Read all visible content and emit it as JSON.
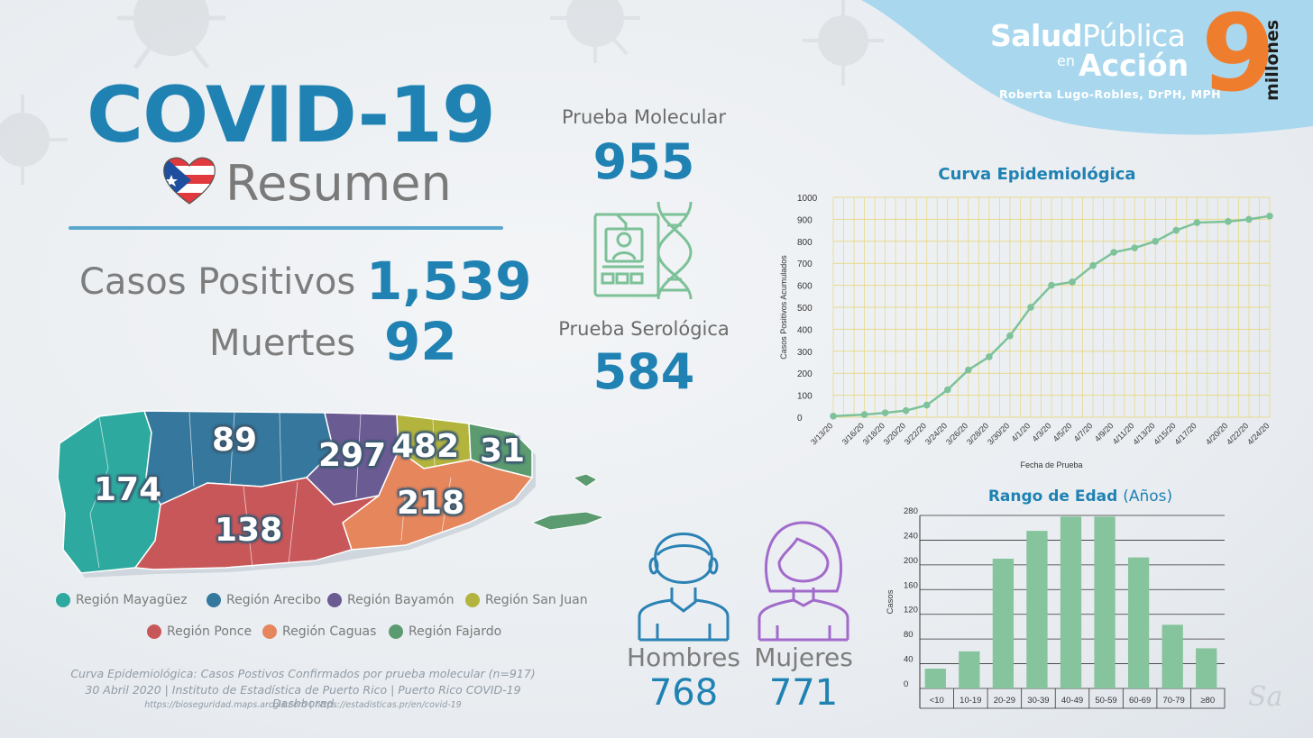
{
  "brand": {
    "salud": "Salud",
    "publica": "Pública",
    "en": "en",
    "accion": "Acción",
    "author": "Roberta Lugo-Robles, DrPH, MPH",
    "nine": "9",
    "millones": "millones"
  },
  "title": {
    "main": "COVID-19",
    "sub": "Resumen"
  },
  "stats": {
    "casos_label": "Casos Positivos",
    "casos_value": "1,539",
    "muertes_label": "Muertes",
    "muertes_value": "92"
  },
  "tests": {
    "molecular_label": "Prueba Molecular",
    "molecular_value": "955",
    "serologica_label": "Prueba Serológica",
    "serologica_value": "584"
  },
  "map": {
    "regions": [
      {
        "name": "Región Mayagüez",
        "value": "174",
        "color": "#2ea99f"
      },
      {
        "name": "Región Arecibo",
        "value": "89",
        "color": "#35779d"
      },
      {
        "name": "Región Bayamón",
        "value": "297",
        "color": "#6b5b93"
      },
      {
        "name": "Región San Juan",
        "value": "482",
        "color": "#b3b43e"
      },
      {
        "name": "Región Ponce",
        "value": "138",
        "color": "#c8575a"
      },
      {
        "name": "Región Caguas",
        "value": "218",
        "color": "#e5865d"
      },
      {
        "name": "Región Fajardo",
        "value": "31",
        "color": "#5c9a70"
      }
    ]
  },
  "source": {
    "line1": "Curva Epidemiológica: Casos Postivos Confirmados por prueba molecular (n=917)",
    "line2": "30 Abril 2020 | Instituto de Estadística de Puerto Rico | Puerto Rico COVID-19 Dashborad",
    "line3": "https://bioseguridad.maps.arcgis.com | https://estadisticas.pr/en/covid-19"
  },
  "gender": {
    "men_label": "Hombres",
    "men_value": "768",
    "women_label": "Mujeres",
    "women_value": "771"
  },
  "signature": "Sa",
  "chart_data": [
    {
      "type": "line",
      "title": "Curva Epidemiológica",
      "xlabel": "Fecha de Prueba",
      "ylabel": "Casos Positivos Acumulados",
      "ylim": [
        0,
        1000
      ],
      "yticks": [
        0,
        100,
        200,
        300,
        400,
        500,
        600,
        700,
        800,
        900,
        1000
      ],
      "x": [
        "3/13/20",
        "3/14/20",
        "3/15/20",
        "3/16/20",
        "3/17/20",
        "3/18/20",
        "3/19/20",
        "3/20/20",
        "3/21/20",
        "3/22/20",
        "3/23/20",
        "3/24/20",
        "3/25/20",
        "3/26/20",
        "3/27/20",
        "3/28/20",
        "3/29/20",
        "3/30/20",
        "3/31/20",
        "4/1/20",
        "4/2/20",
        "4/3/20",
        "4/4/20",
        "4/5/20",
        "4/6/20",
        "4/7/20",
        "4/8/20",
        "4/9/20",
        "4/10/20",
        "4/11/20",
        "4/12/20",
        "4/13/20",
        "4/14/20",
        "4/15/20",
        "4/16/20",
        "4/17/20",
        "4/18/20",
        "4/19/20",
        "4/20/20",
        "4/21/20",
        "4/22/20",
        "4/23/20",
        "4/24/20"
      ],
      "xticks": [
        "3/13/20",
        "3/16/20",
        "3/18/20",
        "3/20/20",
        "3/22/20",
        "3/24/20",
        "3/26/20",
        "3/28/20",
        "3/30/20",
        "4/1/20",
        "4/3/20",
        "4/5/20",
        "4/7/20",
        "4/9/20",
        "4/11/20",
        "4/13/20",
        "4/15/20",
        "4/17/20",
        "4/20/20",
        "4/22/20",
        "4/24/20"
      ],
      "points": [
        {
          "x": "3/13/20",
          "y": 5
        },
        {
          "x": "3/16/20",
          "y": 12
        },
        {
          "x": "3/18/20",
          "y": 20
        },
        {
          "x": "3/20/20",
          "y": 30
        },
        {
          "x": "3/22/20",
          "y": 55
        },
        {
          "x": "3/24/20",
          "y": 125
        },
        {
          "x": "3/26/20",
          "y": 215
        },
        {
          "x": "3/28/20",
          "y": 275
        },
        {
          "x": "3/30/20",
          "y": 370
        },
        {
          "x": "4/1/20",
          "y": 500
        },
        {
          "x": "4/3/20",
          "y": 600
        },
        {
          "x": "4/5/20",
          "y": 615
        },
        {
          "x": "4/7/20",
          "y": 690
        },
        {
          "x": "4/9/20",
          "y": 750
        },
        {
          "x": "4/11/20",
          "y": 770
        },
        {
          "x": "4/13/20",
          "y": 800
        },
        {
          "x": "4/15/20",
          "y": 850
        },
        {
          "x": "4/17/20",
          "y": 885
        },
        {
          "x": "4/20/20",
          "y": 890
        },
        {
          "x": "4/22/20",
          "y": 900
        },
        {
          "x": "4/24/20",
          "y": 915
        }
      ],
      "color": "#7dc29a"
    },
    {
      "type": "bar",
      "title": "Rango de Edad",
      "title_light": "(Años)",
      "ylabel": "Casos",
      "ylim": [
        0,
        280
      ],
      "yticks": [
        0,
        40,
        80,
        120,
        160,
        200,
        240,
        280
      ],
      "categories": [
        "<10",
        "10-19",
        "20-29",
        "30-39",
        "40-49",
        "50-59",
        "60-69",
        "70-79",
        "≥80"
      ],
      "values": [
        32,
        60,
        210,
        255,
        278,
        278,
        212,
        103,
        65
      ],
      "color": "#85c49c"
    }
  ]
}
